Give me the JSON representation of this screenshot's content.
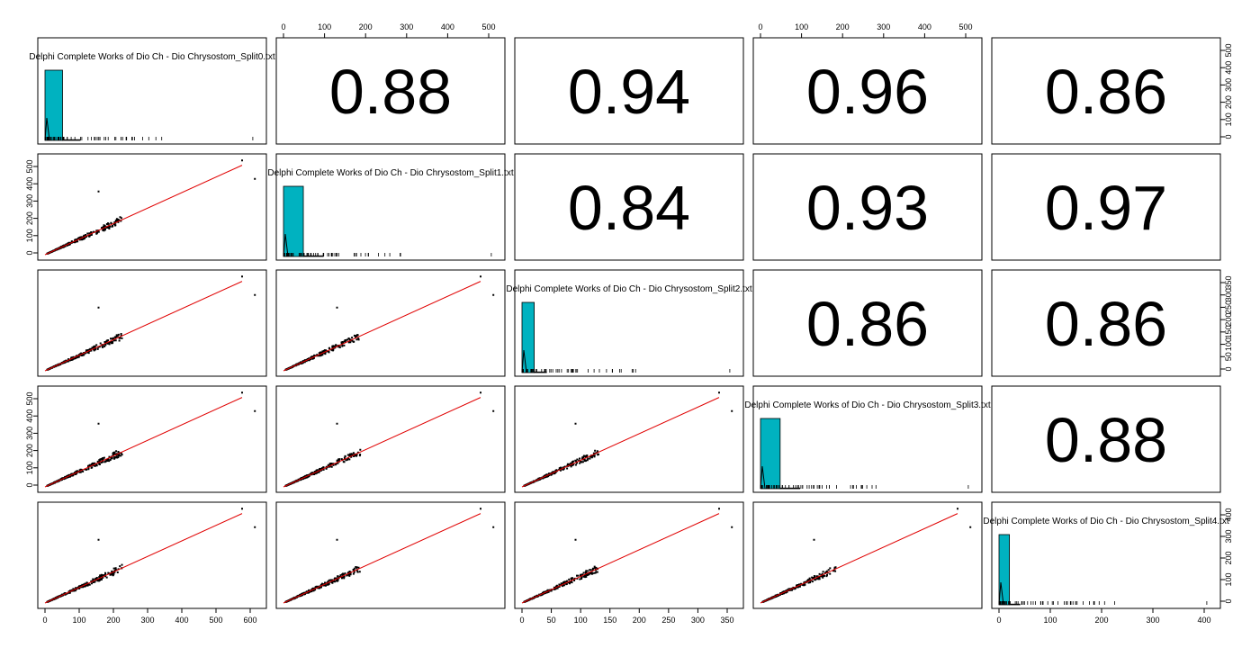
{
  "chart_data": {
    "type": "scatter-matrix",
    "variables": [
      "Delphi Complete Works of Dio Ch - Dio Chrysostom_Split0.txt",
      "Delphi Complete Works of Dio Ch - Dio Chrysostom_Split1.txt",
      "Delphi Complete Works of Dio Ch - Dio Chrysostom_Split2.txt",
      "Delphi Complete Works of Dio Ch - Dio Chrysostom_Split3.txt",
      "Delphi Complete Works of Dio Ch - Dio Chrysostom_Split4.txt"
    ],
    "ranges": [
      [
        0,
        610
      ],
      [
        0,
        540
      ],
      [
        0,
        350
      ],
      [
        0,
        545
      ],
      [
        0,
        410
      ]
    ],
    "correlations": {
      "0-1": "0.88",
      "0-2": "0.94",
      "0-3": "0.96",
      "0-4": "0.86",
      "1-2": "0.84",
      "1-3": "0.93",
      "1-4": "0.97",
      "2-3": "0.86",
      "2-4": "0.86",
      "3-4": "0.88"
    },
    "axes": {
      "top": {
        "1": [
          "0",
          "100",
          "200",
          "300",
          "400",
          "500"
        ],
        "3": [
          "0",
          "100",
          "200",
          "300",
          "400",
          "500"
        ]
      },
      "bottom": {
        "0": [
          "0",
          "100",
          "200",
          "300",
          "400",
          "500",
          "600"
        ],
        "2": [
          "0",
          "50",
          "100",
          "150",
          "200",
          "250",
          "300",
          "350"
        ],
        "4": [
          "0",
          "100",
          "200",
          "300",
          "400"
        ]
      },
      "left": {
        "1": [
          "0",
          "100",
          "200",
          "300",
          "400",
          "500"
        ],
        "3": [
          "0",
          "100",
          "200",
          "300",
          "400",
          "500"
        ]
      },
      "right": {
        "0": [
          "0",
          "100",
          "200",
          "300",
          "400",
          "500"
        ],
        "2": [
          "0",
          "50",
          "100",
          "150",
          "200",
          "250",
          "300",
          "350"
        ],
        "4": [
          "0",
          "100",
          "200",
          "300",
          "400"
        ]
      }
    },
    "histograms": [
      {
        "bins": [
          0,
          50,
          100
        ],
        "counts": [
          1,
          0.01
        ]
      },
      {
        "bins": [
          0,
          50,
          100
        ],
        "counts": [
          1,
          0.01
        ]
      },
      {
        "bins": [
          0,
          20,
          40
        ],
        "counts": [
          1,
          0.01
        ]
      },
      {
        "bins": [
          0,
          50,
          100
        ],
        "counts": [
          1,
          0.01
        ]
      },
      {
        "bins": [
          0,
          20,
          40
        ],
        "counts": [
          1,
          0.01
        ]
      }
    ],
    "hist_color": "#00b2c0",
    "fit_line_color": "#e00000",
    "point_color": "#000000",
    "grid": false
  }
}
